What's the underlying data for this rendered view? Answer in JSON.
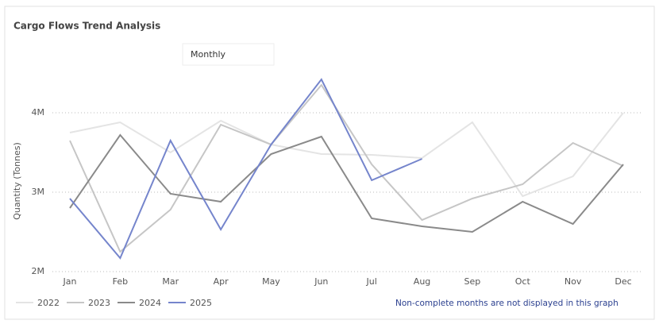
{
  "chart_data": {
    "type": "line",
    "title": "Cargo Flows Trend Analysis",
    "button": "Monthly",
    "y_label": "Quantity (Tonnes)",
    "note": "Non-complete months are not displayed in this graph",
    "categories": [
      "Jan",
      "Feb",
      "Mar",
      "Apr",
      "May",
      "Jun",
      "Jul",
      "Aug",
      "Sep",
      "Oct",
      "Nov",
      "Dec"
    ],
    "series": [
      {
        "name": "2022",
        "color": "#e4e4e4",
        "values": [
          3750000,
          3880000,
          3500000,
          3900000,
          3600000,
          3480000,
          3470000,
          3430000,
          3880000,
          2950000,
          3200000,
          4000000
        ]
      },
      {
        "name": "2023",
        "color": "#c6c6c6",
        "values": [
          3650000,
          2250000,
          2780000,
          3850000,
          3600000,
          4350000,
          3350000,
          2650000,
          2920000,
          3100000,
          3620000,
          3330000
        ]
      },
      {
        "name": "2024",
        "color": "#8a8a8a",
        "values": [
          2800000,
          3720000,
          2980000,
          2880000,
          3480000,
          3700000,
          2670000,
          2570000,
          2500000,
          2880000,
          2600000,
          3350000
        ]
      },
      {
        "name": "2025",
        "color": "#7585cc",
        "values": [
          2920000,
          2170000,
          3650000,
          2530000,
          3600000,
          4420000,
          3150000,
          3420000,
          null,
          null,
          null,
          null
        ]
      }
    ],
    "ylim": [
      2000000,
      4500000
    ],
    "yticks": [
      {
        "value": 2000000,
        "label": "2M"
      },
      {
        "value": 3000000,
        "label": "3M"
      },
      {
        "value": 4000000,
        "label": "4M"
      }
    ],
    "grid": true
  }
}
